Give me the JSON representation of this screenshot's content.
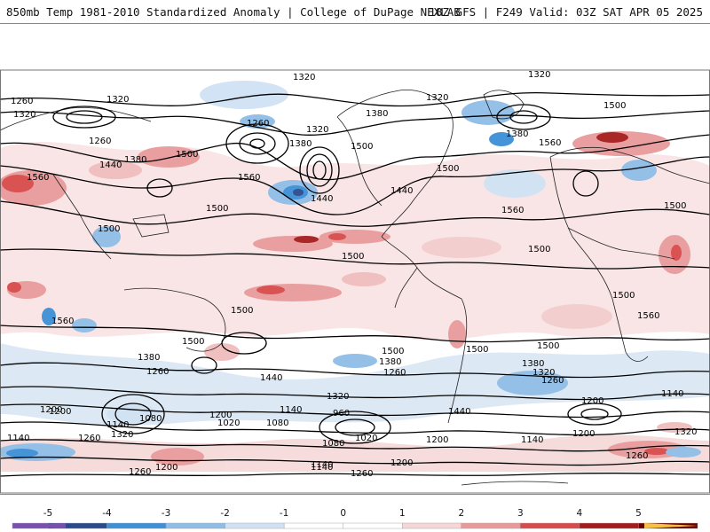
{
  "header": {
    "title": "850mb Temp 1981-2010 Standardized Anomaly | College of DuPage NEXLAB",
    "run_info": "18Z GFS | F249 Valid: 03Z SAT APR 05 2025"
  },
  "map": {
    "projection": "global cylindrical",
    "contour_variable": "geopotential height",
    "height_labels": [
      "1320",
      "1260",
      "1320",
      "1380",
      "1320",
      "1440",
      "1500",
      "1560",
      "1500",
      "1260",
      "1380",
      "1320",
      "1440",
      "1500",
      "1320",
      "1380",
      "1320",
      "1380",
      "1560",
      "1500",
      "1500",
      "1440",
      "1560",
      "1500",
      "1560",
      "1500",
      "1500",
      "1500",
      "1560",
      "1500",
      "1560",
      "1500",
      "1380",
      "1260",
      "1440",
      "1320",
      "1200",
      "1140",
      "1200",
      "1140",
      "1260",
      "1320",
      "1080",
      "1200",
      "1020",
      "1140",
      "1080",
      "960",
      "1080",
      "1020",
      "1200",
      "1140",
      "1200",
      "1260",
      "1140",
      "1380",
      "1320",
      "1260",
      "1440",
      "1200",
      "1140",
      "1320",
      "1200",
      "1260",
      "1140",
      "1260",
      "1200",
      "1260",
      "1500",
      "1500",
      "1500",
      "1500",
      "1380",
      "1260"
    ],
    "colors": {
      "anomaly_neg5": "#7b4fb0",
      "anomaly_neg4": "#2b4a8c",
      "anomaly_neg3": "#3d8fd6",
      "anomaly_neg2": "#8fbde6",
      "anomaly_neg1": "#cfe1f3",
      "anomaly_zero": "#ffffff",
      "anomaly_pos1": "#f6d6d6",
      "anomaly_pos2": "#e89a9a",
      "anomaly_pos3": "#d94a4a",
      "anomaly_pos4": "#a51c1c",
      "anomaly_pos5": "#6b0000",
      "extreme_pos": "#f5c242",
      "contour": "#000000",
      "coastline": "#222222"
    }
  },
  "colorbar": {
    "ticks": [
      "-5",
      "-4",
      "-3",
      "-2",
      "-1",
      "0",
      "1",
      "2",
      "3",
      "4",
      "5"
    ],
    "tick_values": [
      -5,
      -4,
      -3,
      -2,
      -1,
      0,
      1,
      2,
      3,
      4,
      5
    ],
    "range": [
      -5.6,
      6
    ]
  }
}
